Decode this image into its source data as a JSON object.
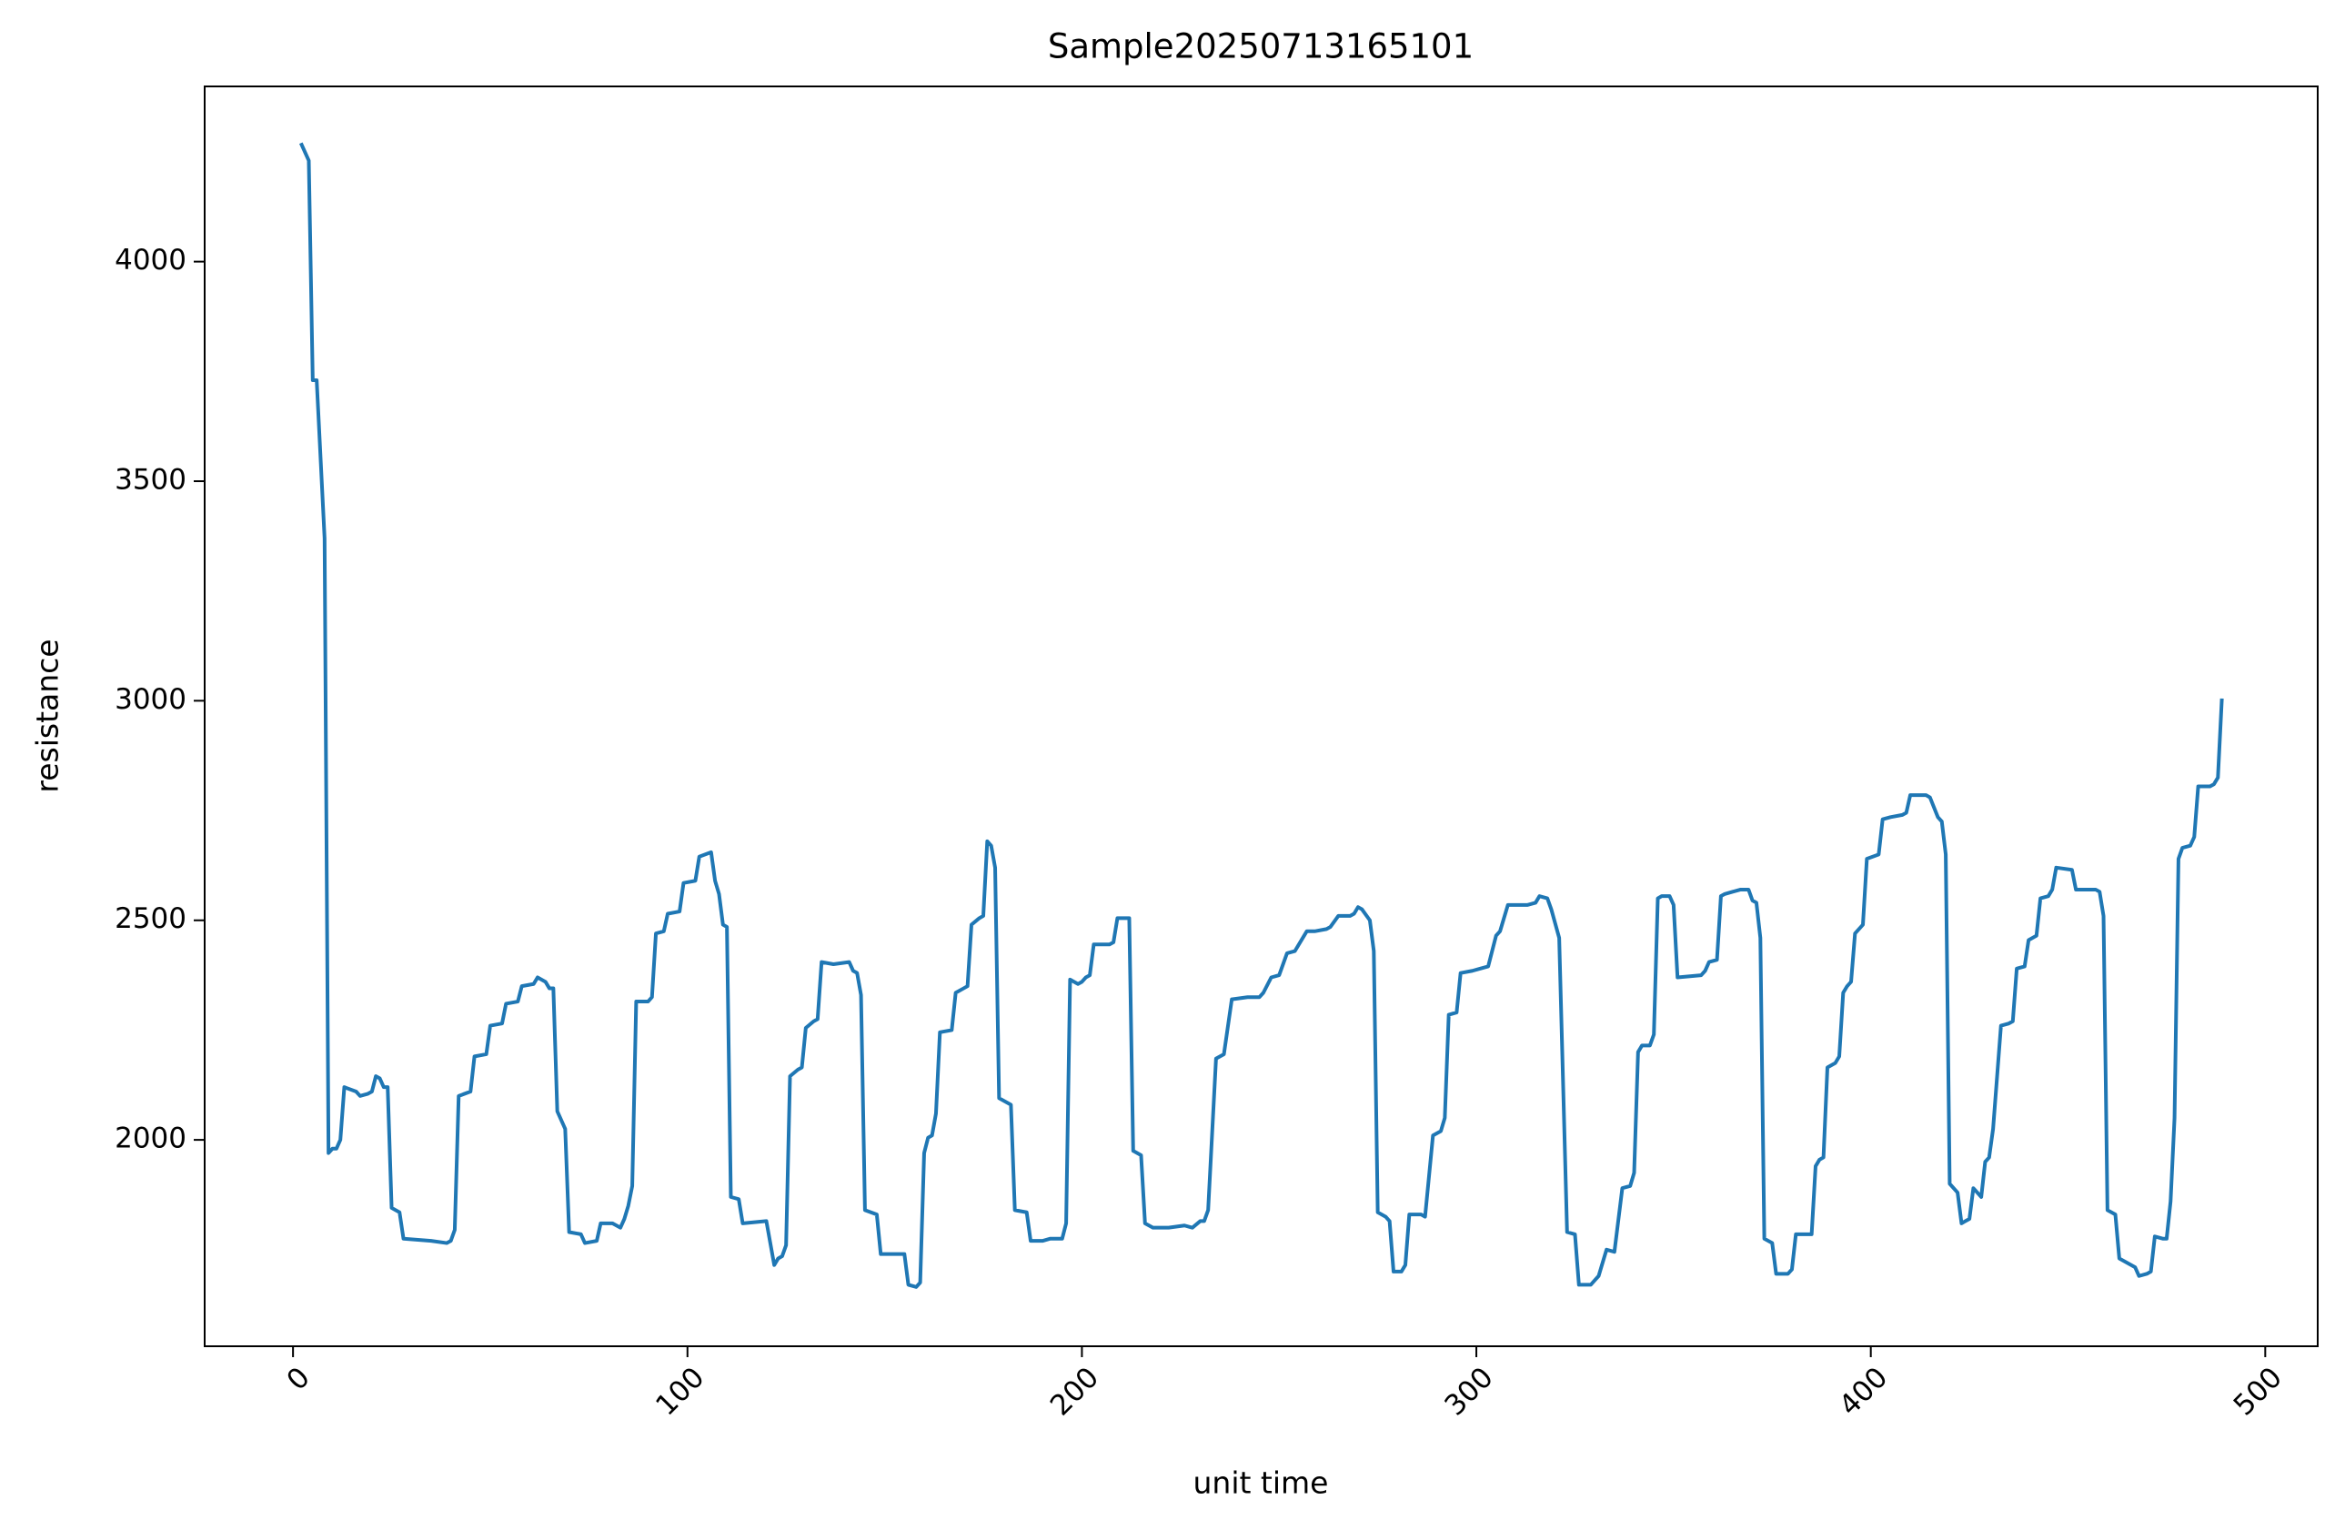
{
  "chart_data": {
    "type": "line",
    "title": "Sample20250713165101",
    "x_label": "unit time",
    "y_label": "resistance",
    "color": "#1f77b4",
    "grid": false,
    "xlim": [
      -22.4,
      513.3
    ],
    "ylim": [
      1530,
      4399
    ],
    "xticks": [
      0,
      100,
      200,
      300,
      400,
      500
    ],
    "yticks": [
      2000,
      2500,
      3000,
      3500,
      4000
    ],
    "x": [
      2,
      4,
      5,
      6,
      8,
      9,
      10,
      11,
      12,
      13,
      16,
      17,
      19,
      20,
      21,
      22,
      23,
      24,
      25,
      27,
      28,
      35,
      39,
      40,
      41,
      42,
      45,
      46,
      49,
      50,
      53,
      54,
      57,
      58,
      61,
      62,
      64,
      65,
      66,
      67,
      69,
      70,
      73,
      74,
      77,
      78,
      81,
      82,
      83,
      84,
      85,
      86,
      87,
      90,
      91,
      92,
      94,
      95,
      98,
      99,
      102,
      103,
      106,
      107,
      108,
      109,
      110,
      111,
      113,
      114,
      120,
      122,
      123,
      124,
      125,
      126,
      128,
      129,
      130,
      132,
      133,
      134,
      137,
      141,
      142,
      143,
      144,
      145,
      148,
      149,
      155,
      156,
      158,
      159,
      160,
      161,
      162,
      163,
      164,
      167,
      168,
      170,
      171,
      172,
      174,
      175,
      176,
      177,
      178,
      179,
      182,
      183,
      186,
      187,
      190,
      192,
      195,
      196,
      197,
      199,
      200,
      201,
      202,
      203,
      207,
      208,
      209,
      212,
      213,
      215,
      216,
      218,
      222,
      226,
      228,
      230,
      231,
      232,
      234,
      236,
      238,
      242,
      245,
      246,
      248,
      250,
      252,
      254,
      257,
      259,
      262,
      263,
      265,
      268,
      269,
      270,
      271,
      273,
      274,
      275,
      277,
      278,
      279,
      281,
      282,
      283,
      286,
      287,
      289,
      291,
      292,
      293,
      295,
      296,
      299,
      301,
      303,
      305,
      306,
      308,
      313,
      315,
      316,
      318,
      319,
      321,
      323,
      325,
      326,
      329,
      330,
      331,
      333,
      335,
      337,
      339,
      340,
      341,
      342,
      344,
      345,
      346,
      347,
      349,
      350,
      351,
      357,
      358,
      359,
      361,
      362,
      363,
      365,
      367,
      369,
      370,
      371,
      372,
      373,
      375,
      376,
      379,
      380,
      381,
      385,
      386,
      387,
      388,
      389,
      391,
      392,
      393,
      394,
      395,
      396,
      398,
      399,
      402,
      403,
      405,
      408,
      409,
      410,
      414,
      415,
      417,
      418,
      419,
      420,
      422,
      423,
      424,
      425,
      426,
      428,
      429,
      430,
      431,
      433,
      435,
      436,
      437,
      439,
      440,
      442,
      443,
      445,
      446,
      447,
      451,
      452,
      457,
      458,
      459,
      460,
      462,
      463,
      467,
      468,
      470,
      471,
      472,
      474,
      475,
      476,
      477,
      478,
      479,
      481,
      482,
      483,
      486,
      487,
      488,
      489
    ],
    "values": [
      4270,
      4230,
      3730,
      3730,
      3370,
      1970,
      1980,
      1980,
      2000,
      2120,
      2110,
      2100,
      2105,
      2110,
      2145,
      2140,
      2120,
      2120,
      1845,
      1835,
      1775,
      1770,
      1765,
      1770,
      1795,
      2100,
      2110,
      2190,
      2195,
      2260,
      2265,
      2310,
      2315,
      2350,
      2355,
      2370,
      2360,
      2345,
      2345,
      2065,
      2025,
      1790,
      1785,
      1765,
      1770,
      1810,
      1810,
      1805,
      1800,
      1820,
      1850,
      1895,
      2315,
      2315,
      2325,
      2470,
      2475,
      2515,
      2520,
      2585,
      2590,
      2645,
      2655,
      2590,
      2560,
      2490,
      2485,
      1870,
      1865,
      1810,
      1815,
      1715,
      1730,
      1735,
      1760,
      2145,
      2160,
      2165,
      2255,
      2270,
      2275,
      2405,
      2400,
      2405,
      2385,
      2380,
      2330,
      1840,
      1830,
      1740,
      1740,
      1670,
      1665,
      1675,
      1970,
      2005,
      2010,
      2060,
      2245,
      2250,
      2335,
      2345,
      2350,
      2490,
      2505,
      2510,
      2680,
      2670,
      2620,
      2095,
      2080,
      1840,
      1835,
      1770,
      1770,
      1775,
      1775,
      1810,
      2365,
      2355,
      2360,
      2370,
      2375,
      2445,
      2445,
      2450,
      2505,
      2505,
      1975,
      1965,
      1810,
      1800,
      1800,
      1805,
      1800,
      1815,
      1815,
      1840,
      2185,
      2195,
      2320,
      2325,
      2325,
      2335,
      2370,
      2375,
      2425,
      2430,
      2475,
      2475,
      2480,
      2485,
      2510,
      2510,
      2515,
      2530,
      2525,
      2500,
      2430,
      1835,
      1825,
      1815,
      1700,
      1700,
      1715,
      1830,
      1830,
      1825,
      2010,
      2020,
      2050,
      2285,
      2290,
      2380,
      2385,
      2390,
      2395,
      2465,
      2475,
      2535,
      2535,
      2540,
      2555,
      2550,
      2525,
      2460,
      1790,
      1785,
      1670,
      1670,
      1680,
      1690,
      1750,
      1745,
      1890,
      1895,
      1925,
      2200,
      2215,
      2215,
      2240,
      2550,
      2555,
      2555,
      2535,
      2370,
      2375,
      2385,
      2405,
      2410,
      2555,
      2560,
      2565,
      2570,
      2570,
      2545,
      2540,
      2460,
      1775,
      1765,
      1695,
      1695,
      1705,
      1785,
      1785,
      1940,
      1955,
      1960,
      2165,
      2175,
      2190,
      2335,
      2350,
      2360,
      2470,
      2490,
      2640,
      2650,
      2730,
      2735,
      2740,
      2745,
      2785,
      2785,
      2780,
      2735,
      2725,
      2650,
      1900,
      1880,
      1810,
      1815,
      1820,
      1890,
      1870,
      1950,
      1960,
      2025,
      2260,
      2265,
      2270,
      2390,
      2395,
      2455,
      2465,
      2550,
      2555,
      2570,
      2620,
      2615,
      2570,
      2570,
      2565,
      2510,
      1840,
      1830,
      1730,
      1710,
      1690,
      1695,
      1700,
      1780,
      1775,
      1775,
      1860,
      2050,
      2640,
      2665,
      2670,
      2690,
      2805,
      2805,
      2810,
      2825,
      3005
    ]
  }
}
